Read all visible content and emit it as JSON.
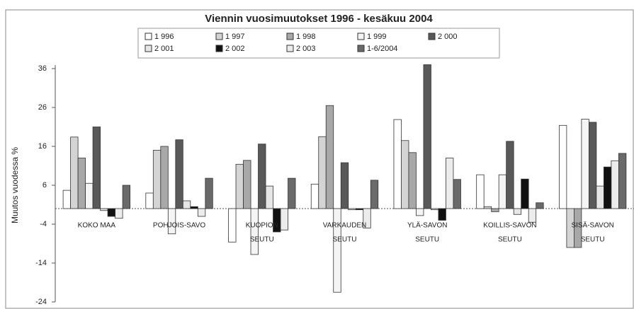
{
  "chart_data": {
    "type": "bar",
    "title": "Viennin vuosimuutokset 1996 - kesäkuu 2004",
    "y_label": "Muutos vuodessa %",
    "categories": [
      [
        "KOKO MAA"
      ],
      [
        "POHJOIS-SAVO"
      ],
      [
        "KUOPION",
        "SEUTU"
      ],
      [
        "VARKAUDEN",
        "SEUTU"
      ],
      [
        "YLÄ-SAVON",
        "SEUTU"
      ],
      [
        "KOILLIS-SAVON",
        "SEUTU"
      ],
      [
        "SISÄ-SAVON",
        "SEUTU"
      ]
    ],
    "series": [
      {
        "name": "1 996",
        "color": "#ffffff",
        "values": [
          4.7,
          4,
          -8.6,
          6.3,
          22.9,
          8.7,
          21.4
        ]
      },
      {
        "name": "1 997",
        "color": "#d4d4d4",
        "values": [
          18.4,
          15,
          11.4,
          18.5,
          17.5,
          0.5,
          -10
        ]
      },
      {
        "name": "1 998",
        "color": "#a8a8a8",
        "values": [
          13,
          16,
          12.4,
          26.5,
          14.4,
          -0.8,
          -10
        ]
      },
      {
        "name": "1 999",
        "color": "#f4f4f4",
        "values": [
          6.5,
          -6.5,
          -11.8,
          -21.5,
          -1.8,
          8.7,
          23
        ]
      },
      {
        "name": "2 000",
        "color": "#595959",
        "values": [
          21,
          17.7,
          16.6,
          11.8,
          37,
          17.3,
          22.2
        ]
      },
      {
        "name": "2 001",
        "color": "#e6e6e6",
        "values": [
          -0.5,
          2,
          5.8,
          -0.3,
          -0.3,
          -1.5,
          5.8
        ]
      },
      {
        "name": "2 002",
        "color": "#111111",
        "values": [
          -2,
          0.5,
          -6,
          -0.3,
          -3,
          7.6,
          10.7
        ]
      },
      {
        "name": "2 003",
        "color": "#ececec",
        "values": [
          -2.5,
          -2,
          -5.5,
          -5,
          13,
          -3.5,
          12.3
        ]
      },
      {
        "name": "1-6/2004",
        "color": "#6a6a6a",
        "values": [
          6,
          7.8,
          7.8,
          7.3,
          7.5,
          1.5,
          14.2
        ]
      }
    ],
    "ylim": [
      -24,
      36
    ],
    "yticks": [
      -24,
      -14,
      -4,
      6,
      16,
      26,
      36
    ],
    "grid": false
  }
}
